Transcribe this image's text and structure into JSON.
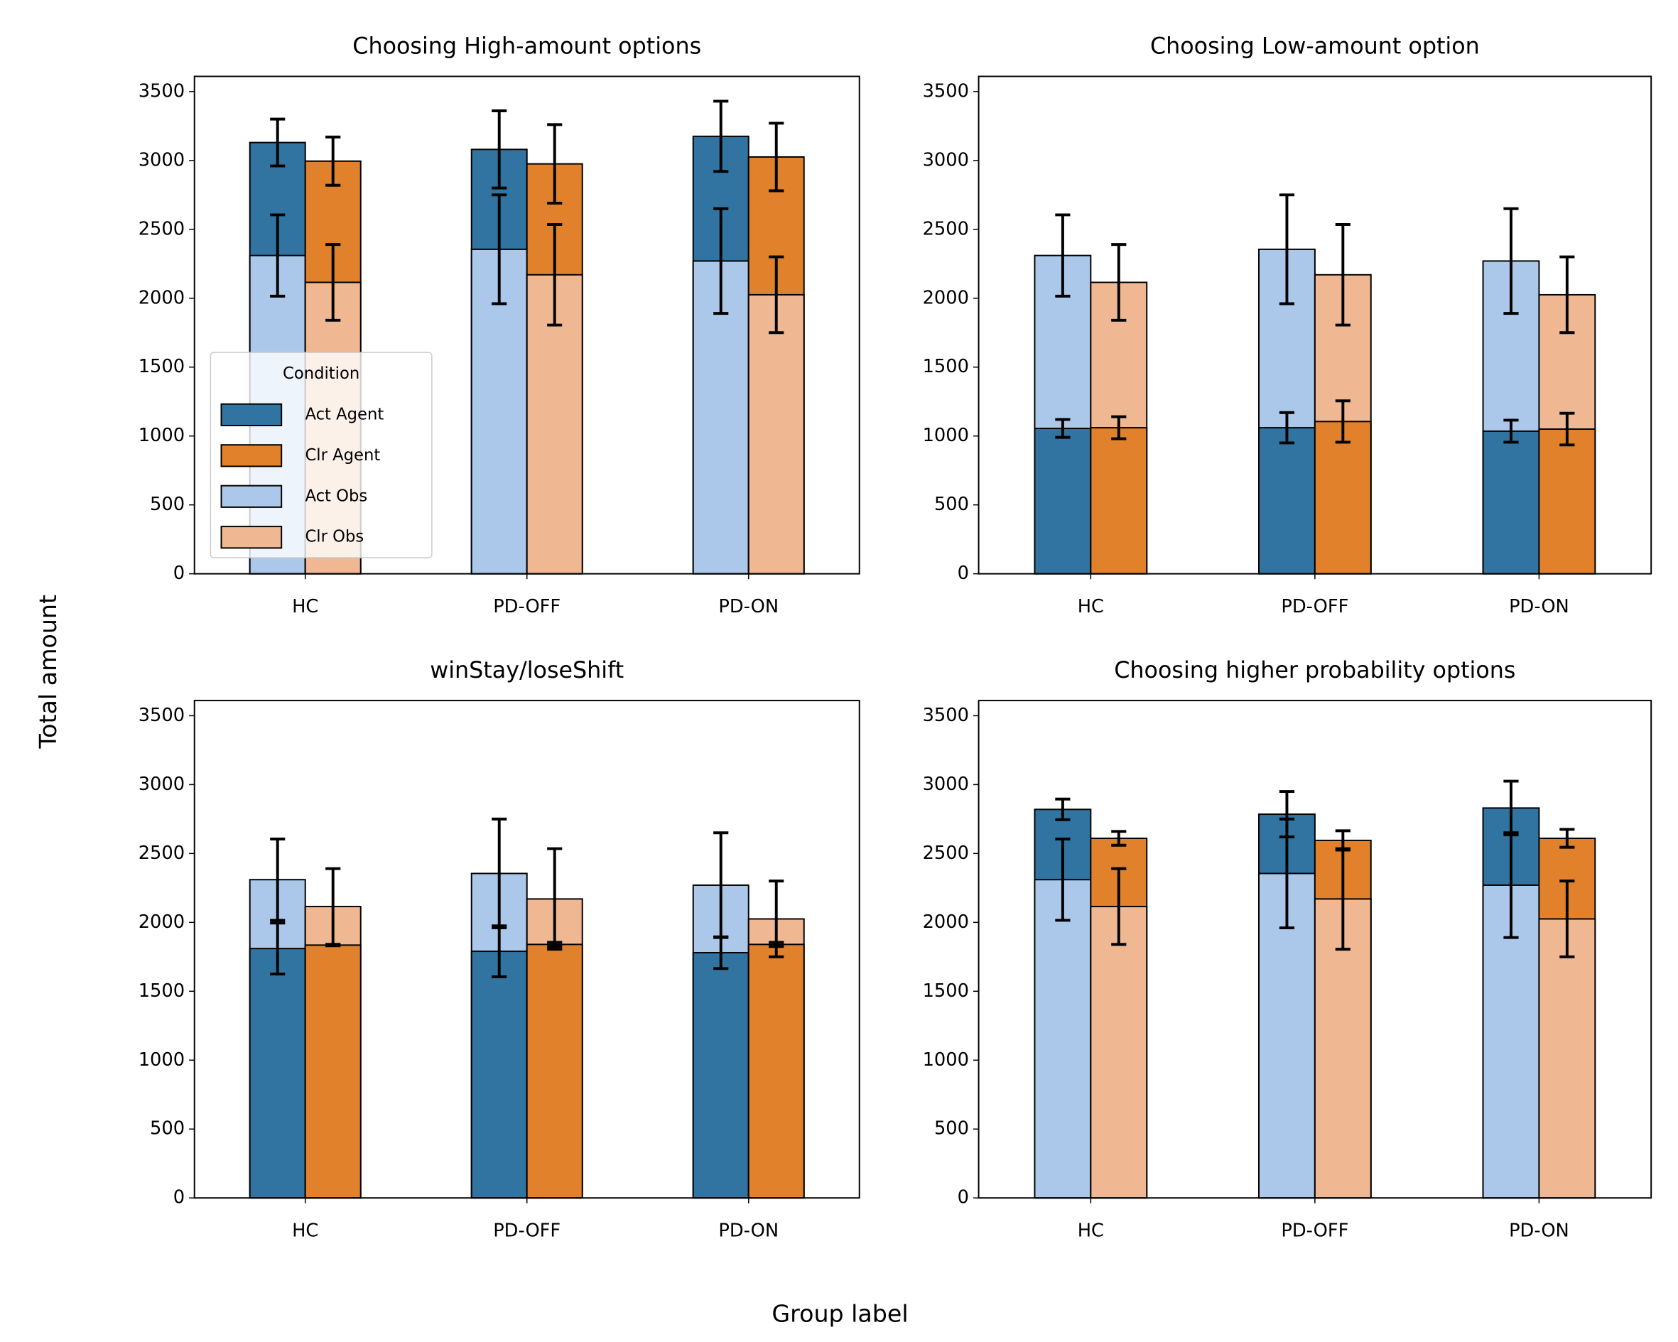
{
  "xlabel": "Group label",
  "ylabel": "Total amount",
  "chart_data": [
    {
      "type": "bar",
      "title": "Choosing High-amount options",
      "categories": [
        "HC",
        "PD-OFF",
        "PD-ON"
      ],
      "ylim": [
        0,
        3610
      ],
      "yticks": [
        0,
        500,
        1000,
        1500,
        2000,
        2500,
        3000,
        3500
      ],
      "legend": {
        "title": "Condition",
        "loc": "lower left"
      },
      "series": [
        {
          "name": "Act Agent",
          "color": "#3274a1",
          "values": [
            3130,
            3080,
            3175
          ],
          "errors": [
            170,
            280,
            255
          ]
        },
        {
          "name": "Clr Agent",
          "color": "#e1812c",
          "values": [
            2995,
            2975,
            3025
          ],
          "errors": [
            175,
            285,
            245
          ]
        },
        {
          "name": "Act Obs",
          "color": "#abc8eb",
          "values": [
            2310,
            2355,
            2270
          ],
          "errors": [
            295,
            395,
            380
          ]
        },
        {
          "name": "Clr Obs",
          "color": "#efb792",
          "values": [
            2115,
            2170,
            2025
          ],
          "errors": [
            275,
            365,
            275
          ]
        }
      ]
    },
    {
      "type": "bar",
      "title": "Choosing Low-amount option",
      "categories": [
        "HC",
        "PD-OFF",
        "PD-ON"
      ],
      "ylim": [
        0,
        3610
      ],
      "yticks": [
        0,
        500,
        1000,
        1500,
        2000,
        2500,
        3000,
        3500
      ],
      "series": [
        {
          "name": "Act Agent",
          "color": "#3274a1",
          "values": [
            1055,
            1060,
            1035
          ],
          "errors": [
            65,
            110,
            80
          ]
        },
        {
          "name": "Clr Agent",
          "color": "#e1812c",
          "values": [
            1060,
            1105,
            1050
          ],
          "errors": [
            80,
            150,
            115
          ]
        },
        {
          "name": "Act Obs",
          "color": "#abc8eb",
          "values": [
            2310,
            2355,
            2270
          ],
          "errors": [
            295,
            395,
            380
          ]
        },
        {
          "name": "Clr Obs",
          "color": "#efb792",
          "values": [
            2115,
            2170,
            2025
          ],
          "errors": [
            275,
            365,
            275
          ]
        }
      ]
    },
    {
      "type": "bar",
      "title": "winStay/loseShift",
      "categories": [
        "HC",
        "PD-OFF",
        "PD-ON"
      ],
      "ylim": [
        0,
        3610
      ],
      "yticks": [
        0,
        500,
        1000,
        1500,
        2000,
        2500,
        3000,
        3500
      ],
      "series": [
        {
          "name": "Act Agent",
          "color": "#3274a1",
          "values": [
            1810,
            1790,
            1780
          ],
          "errors": [
            185,
            185,
            115
          ]
        },
        {
          "name": "Clr Agent",
          "color": "#e1812c",
          "values": [
            1835,
            1840,
            1840
          ],
          "errors": [
            5,
            15,
            15
          ]
        },
        {
          "name": "Act Obs",
          "color": "#abc8eb",
          "values": [
            2310,
            2355,
            2270
          ],
          "errors": [
            295,
            395,
            380
          ]
        },
        {
          "name": "Clr Obs",
          "color": "#efb792",
          "values": [
            2115,
            2170,
            2025
          ],
          "errors": [
            275,
            365,
            275
          ]
        }
      ]
    },
    {
      "type": "bar",
      "title": "Choosing higher probability options",
      "categories": [
        "HC",
        "PD-OFF",
        "PD-ON"
      ],
      "ylim": [
        0,
        3610
      ],
      "yticks": [
        0,
        500,
        1000,
        1500,
        2000,
        2500,
        3000,
        3500
      ],
      "series": [
        {
          "name": "Act Agent",
          "color": "#3274a1",
          "values": [
            2820,
            2785,
            2830
          ],
          "errors": [
            75,
            165,
            195
          ]
        },
        {
          "name": "Clr Agent",
          "color": "#e1812c",
          "values": [
            2610,
            2595,
            2610
          ],
          "errors": [
            50,
            70,
            65
          ]
        },
        {
          "name": "Act Obs",
          "color": "#abc8eb",
          "values": [
            2310,
            2355,
            2270
          ],
          "errors": [
            295,
            395,
            380
          ]
        },
        {
          "name": "Clr Obs",
          "color": "#efb792",
          "values": [
            2115,
            2170,
            2025
          ],
          "errors": [
            275,
            365,
            275
          ]
        }
      ]
    }
  ]
}
